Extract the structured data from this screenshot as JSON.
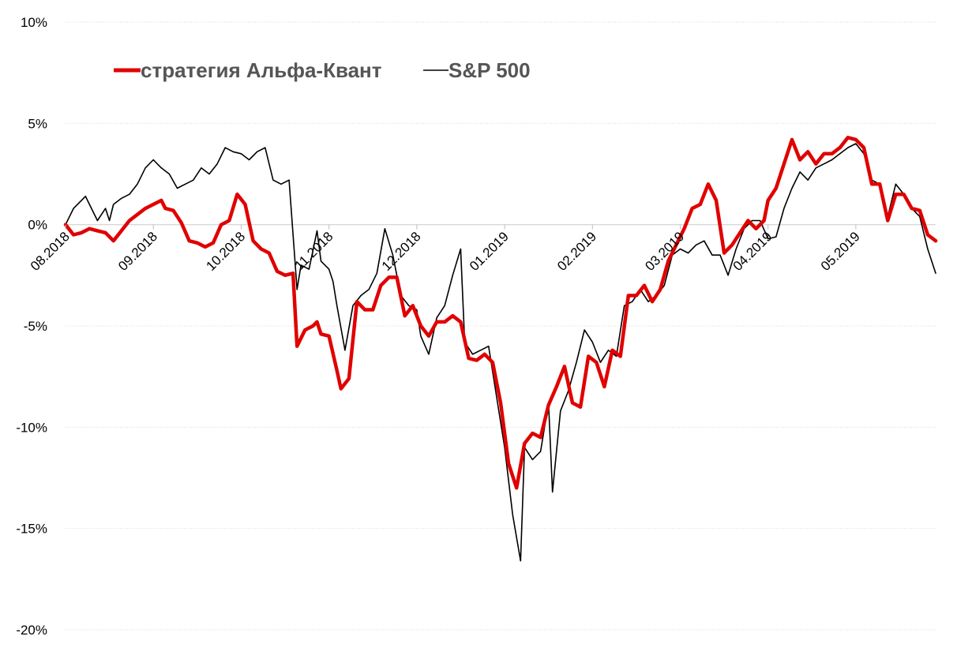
{
  "chart_data": {
    "type": "line",
    "title": "",
    "xlabel": "",
    "ylabel": "",
    "ylim": [
      -20,
      10
    ],
    "y_ticks": [
      10,
      5,
      0,
      -5,
      -10,
      -15,
      -20
    ],
    "y_tick_labels": [
      "10%",
      "5%",
      "0%",
      "-5%",
      "-10%",
      "-15%",
      "-20%"
    ],
    "x_tick_labels": [
      "08.2018",
      "09.2018",
      "10.2018",
      "11.2018",
      "12.2018",
      "01.2019",
      "02.2019",
      "03.2019",
      "04.2019",
      "05.2019"
    ],
    "x_ticks": [
      0,
      22,
      44,
      66,
      88,
      110,
      132,
      154,
      176,
      198
    ],
    "xlim": [
      0,
      218
    ],
    "grid": true,
    "legend_position": "top-left",
    "series": [
      {
        "name": "стратегия Альфа-Квант",
        "color": "#e00000",
        "points": [
          [
            0,
            0
          ],
          [
            2,
            -0.5
          ],
          [
            4,
            -0.4
          ],
          [
            6,
            -0.2
          ],
          [
            8,
            -0.3
          ],
          [
            10,
            -0.4
          ],
          [
            12,
            -0.8
          ],
          [
            14,
            -0.3
          ],
          [
            16,
            0.2
          ],
          [
            18,
            0.5
          ],
          [
            20,
            0.8
          ],
          [
            22,
            1.0
          ],
          [
            24,
            1.2
          ],
          [
            25,
            0.8
          ],
          [
            27,
            0.7
          ],
          [
            29,
            0.1
          ],
          [
            31,
            -0.8
          ],
          [
            33,
            -0.9
          ],
          [
            35,
            -1.1
          ],
          [
            37,
            -0.9
          ],
          [
            39,
            0.0
          ],
          [
            41,
            0.2
          ],
          [
            43,
            1.5
          ],
          [
            45,
            1.0
          ],
          [
            47,
            -0.8
          ],
          [
            49,
            -1.2
          ],
          [
            51,
            -1.4
          ],
          [
            53,
            -2.3
          ],
          [
            55,
            -2.5
          ],
          [
            57,
            -2.4
          ],
          [
            58,
            -6.0
          ],
          [
            60,
            -5.2
          ],
          [
            62,
            -5.0
          ],
          [
            63,
            -4.8
          ],
          [
            64,
            -5.4
          ],
          [
            66,
            -5.5
          ],
          [
            68,
            -7.2
          ],
          [
            69,
            -8.1
          ],
          [
            71,
            -7.6
          ],
          [
            73,
            -3.8
          ],
          [
            75,
            -4.2
          ],
          [
            77,
            -4.2
          ],
          [
            79,
            -3.0
          ],
          [
            81,
            -2.6
          ],
          [
            83,
            -2.6
          ],
          [
            85,
            -4.5
          ],
          [
            87,
            -4.0
          ],
          [
            89,
            -5.0
          ],
          [
            91,
            -5.5
          ],
          [
            93,
            -4.8
          ],
          [
            95,
            -4.8
          ],
          [
            97,
            -4.5
          ],
          [
            99,
            -4.8
          ],
          [
            101,
            -6.6
          ],
          [
            103,
            -6.7
          ],
          [
            105,
            -6.4
          ],
          [
            107,
            -6.8
          ],
          [
            109,
            -8.8
          ],
          [
            111,
            -11.8
          ],
          [
            113,
            -13.0
          ],
          [
            115,
            -10.8
          ],
          [
            117,
            -10.3
          ],
          [
            119,
            -10.5
          ],
          [
            121,
            -8.9
          ],
          [
            123,
            -8.0
          ],
          [
            125,
            -7.0
          ],
          [
            127,
            -8.8
          ],
          [
            129,
            -9.0
          ],
          [
            131,
            -6.5
          ],
          [
            133,
            -6.8
          ],
          [
            135,
            -8.0
          ],
          [
            137,
            -6.2
          ],
          [
            139,
            -6.5
          ],
          [
            141,
            -3.5
          ],
          [
            143,
            -3.5
          ],
          [
            145,
            -3.0
          ],
          [
            147,
            -3.8
          ],
          [
            149,
            -3.2
          ],
          [
            151,
            -1.8
          ],
          [
            153,
            -1.0
          ],
          [
            155,
            -0.2
          ],
          [
            157,
            0.8
          ],
          [
            159,
            1.0
          ],
          [
            161,
            2.0
          ],
          [
            163,
            1.2
          ],
          [
            165,
            -1.4
          ],
          [
            167,
            -1.0
          ],
          [
            169,
            -0.4
          ],
          [
            171,
            0.2
          ],
          [
            173,
            -0.2
          ],
          [
            175,
            0.2
          ],
          [
            176,
            1.2
          ],
          [
            178,
            1.8
          ],
          [
            180,
            3.0
          ],
          [
            182,
            4.2
          ],
          [
            184,
            3.2
          ],
          [
            186,
            3.6
          ],
          [
            188,
            3.0
          ],
          [
            190,
            3.5
          ],
          [
            192,
            3.5
          ],
          [
            194,
            3.8
          ],
          [
            196,
            4.3
          ],
          [
            198,
            4.2
          ],
          [
            200,
            3.8
          ],
          [
            202,
            2.0
          ],
          [
            204,
            2.0
          ],
          [
            206,
            0.2
          ],
          [
            208,
            1.5
          ],
          [
            210,
            1.5
          ],
          [
            212,
            0.8
          ],
          [
            214,
            0.7
          ],
          [
            216,
            -0.5
          ],
          [
            218,
            -0.8
          ]
        ]
      },
      {
        "name": "S&P 500",
        "color": "#000000",
        "points": [
          [
            0,
            0
          ],
          [
            2,
            0.8
          ],
          [
            4,
            1.2
          ],
          [
            5,
            1.4
          ],
          [
            6,
            1.0
          ],
          [
            8,
            0.2
          ],
          [
            9,
            0.5
          ],
          [
            10,
            0.8
          ],
          [
            11,
            0.2
          ],
          [
            12,
            1.0
          ],
          [
            14,
            1.3
          ],
          [
            16,
            1.5
          ],
          [
            18,
            2.0
          ],
          [
            20,
            2.8
          ],
          [
            22,
            3.2
          ],
          [
            24,
            2.8
          ],
          [
            26,
            2.5
          ],
          [
            28,
            1.8
          ],
          [
            30,
            2.0
          ],
          [
            32,
            2.2
          ],
          [
            34,
            2.8
          ],
          [
            36,
            2.5
          ],
          [
            38,
            3.0
          ],
          [
            40,
            3.8
          ],
          [
            42,
            3.6
          ],
          [
            44,
            3.5
          ],
          [
            46,
            3.2
          ],
          [
            48,
            3.6
          ],
          [
            50,
            3.8
          ],
          [
            52,
            2.2
          ],
          [
            54,
            2.0
          ],
          [
            56,
            2.2
          ],
          [
            58,
            -3.2
          ],
          [
            59,
            -2.0
          ],
          [
            61,
            -2.2
          ],
          [
            63,
            -0.3
          ],
          [
            64,
            -1.8
          ],
          [
            66,
            -2.2
          ],
          [
            67,
            -2.8
          ],
          [
            68,
            -4.0
          ],
          [
            70,
            -6.2
          ],
          [
            72,
            -4.0
          ],
          [
            74,
            -3.5
          ],
          [
            76,
            -3.2
          ],
          [
            78,
            -2.4
          ],
          [
            80,
            -0.2
          ],
          [
            82,
            -1.5
          ],
          [
            84,
            -3.5
          ],
          [
            86,
            -4.0
          ],
          [
            88,
            -4.2
          ],
          [
            89,
            -5.5
          ],
          [
            91,
            -6.4
          ],
          [
            93,
            -4.6
          ],
          [
            95,
            -4.0
          ],
          [
            97,
            -2.5
          ],
          [
            99,
            -1.2
          ],
          [
            100,
            -5.8
          ],
          [
            102,
            -6.4
          ],
          [
            104,
            -6.2
          ],
          [
            106,
            -6.0
          ],
          [
            108,
            -8.5
          ],
          [
            110,
            -11.0
          ],
          [
            112,
            -14.3
          ],
          [
            114,
            -16.6
          ],
          [
            115,
            -11.0
          ],
          [
            117,
            -11.6
          ],
          [
            119,
            -11.2
          ],
          [
            121,
            -8.8
          ],
          [
            122,
            -13.2
          ],
          [
            124,
            -9.2
          ],
          [
            126,
            -8.2
          ],
          [
            128,
            -6.8
          ],
          [
            130,
            -5.2
          ],
          [
            132,
            -5.8
          ],
          [
            134,
            -6.8
          ],
          [
            136,
            -6.2
          ],
          [
            138,
            -6.5
          ],
          [
            140,
            -4.0
          ],
          [
            142,
            -3.8
          ],
          [
            144,
            -3.2
          ],
          [
            146,
            -3.8
          ],
          [
            148,
            -3.5
          ],
          [
            150,
            -3.0
          ],
          [
            152,
            -1.5
          ],
          [
            154,
            -1.2
          ],
          [
            156,
            -1.4
          ],
          [
            158,
            -1.0
          ],
          [
            160,
            -0.8
          ],
          [
            162,
            -1.5
          ],
          [
            164,
            -1.5
          ],
          [
            166,
            -2.5
          ],
          [
            168,
            -1.2
          ],
          [
            170,
            -0.2
          ],
          [
            172,
            0.2
          ],
          [
            174,
            0.2
          ],
          [
            176,
            -0.7
          ],
          [
            178,
            -0.6
          ],
          [
            180,
            0.8
          ],
          [
            182,
            1.8
          ],
          [
            184,
            2.6
          ],
          [
            186,
            2.2
          ],
          [
            188,
            2.8
          ],
          [
            190,
            3.0
          ],
          [
            192,
            3.2
          ],
          [
            194,
            3.5
          ],
          [
            196,
            3.8
          ],
          [
            198,
            4.0
          ],
          [
            200,
            3.5
          ],
          [
            202,
            2.2
          ],
          [
            204,
            2.0
          ],
          [
            206,
            0.4
          ],
          [
            208,
            2.0
          ],
          [
            210,
            1.5
          ],
          [
            212,
            0.8
          ],
          [
            214,
            0.4
          ],
          [
            216,
            -1.2
          ],
          [
            218,
            -2.4
          ]
        ]
      }
    ]
  }
}
